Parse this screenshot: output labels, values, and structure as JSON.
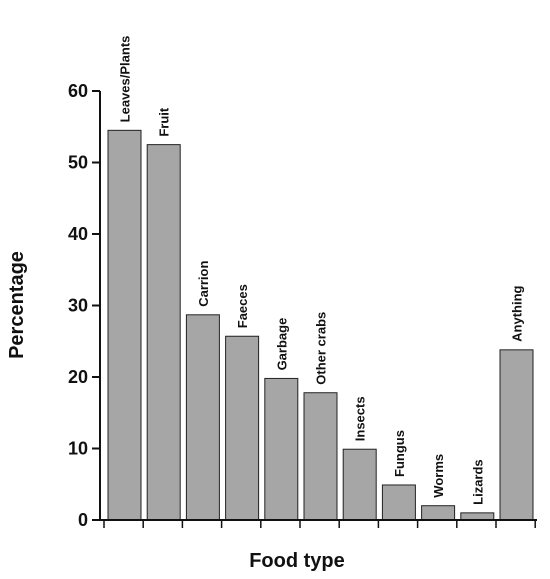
{
  "chart_data": {
    "type": "bar",
    "title": "",
    "xlabel": "Food type",
    "ylabel": "Percentage",
    "ylim": [
      0,
      60
    ],
    "yticks": [
      0,
      10,
      20,
      30,
      40,
      50,
      60
    ],
    "grid": false,
    "legend": "none",
    "categories": [
      "Leaves/Plants",
      "Fruit",
      "Carrion",
      "Faeces",
      "Garbage",
      "Other crabs",
      "Insects",
      "Fungus",
      "Worms",
      "Lizards",
      "Anything"
    ],
    "values": [
      54.5,
      52.5,
      28.7,
      25.7,
      19.8,
      17.8,
      9.9,
      4.9,
      2.0,
      1.0,
      23.8
    ],
    "colors": {
      "bar_fill": "#a6a6a6",
      "bar_stroke": "#222222",
      "axis": "#111111"
    }
  }
}
